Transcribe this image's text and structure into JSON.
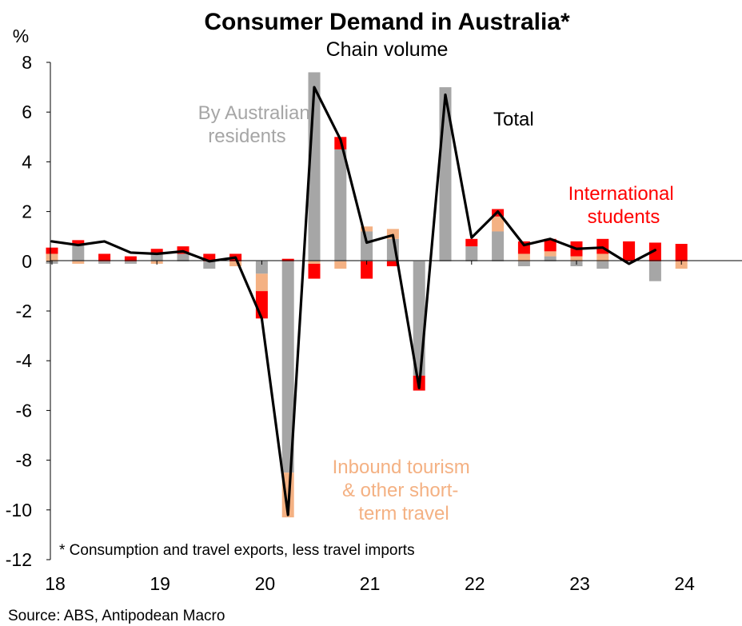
{
  "colors": {
    "residents": "#a6a6a6",
    "tourism": "#f4b183",
    "students": "#ff0000",
    "total": "#000000",
    "axis": "#000000",
    "text": "#000000"
  },
  "chart_data": {
    "type": "bar",
    "stacked": true,
    "title": "Consumer Demand in Australia*",
    "subtitle": "Chain volume",
    "ylabel": "%",
    "ylim": [
      -12,
      8
    ],
    "yticks": [
      8,
      6,
      4,
      2,
      0,
      -2,
      -4,
      -6,
      -8,
      -10,
      -12
    ],
    "x_year_labels": [
      "18",
      "19",
      "20",
      "21",
      "22",
      "23",
      "24"
    ],
    "categories": [
      "2018Q1",
      "2018Q2",
      "2018Q3",
      "2018Q4",
      "2019Q1",
      "2019Q2",
      "2019Q3",
      "2019Q4",
      "2020Q1",
      "2020Q2",
      "2020Q3",
      "2020Q4",
      "2021Q1",
      "2021Q2",
      "2021Q3",
      "2021Q4",
      "2022Q1",
      "2022Q2",
      "2022Q3",
      "2022Q4",
      "2023Q1",
      "2023Q2",
      "2023Q3",
      "2023Q4",
      "2024Q1"
    ],
    "series": [
      {
        "name": "By Australian residents",
        "kind": "bar",
        "values": [
          -0.1,
          0.7,
          -0.1,
          -0.1,
          0.3,
          0.3,
          -0.3,
          0.0,
          -0.5,
          -8.5,
          7.6,
          4.5,
          1.2,
          0.9,
          -4.6,
          7.0,
          0.6,
          1.2,
          -0.2,
          0.2,
          -0.2,
          -0.3,
          0.0,
          -0.8,
          0.0
        ]
      },
      {
        "name": "Inbound tourism & other short-term travel",
        "kind": "bar",
        "values": [
          0.3,
          -0.1,
          0.0,
          0.0,
          -0.1,
          0.0,
          0.0,
          -0.2,
          -0.7,
          -1.8,
          -0.1,
          -0.3,
          0.2,
          0.4,
          0.0,
          0.0,
          0.0,
          0.6,
          0.3,
          0.2,
          0.2,
          0.3,
          0.0,
          0.0,
          -0.3
        ]
      },
      {
        "name": "International students",
        "kind": "bar",
        "values": [
          0.25,
          0.15,
          0.3,
          0.2,
          0.2,
          0.3,
          0.3,
          0.3,
          -1.1,
          0.1,
          -0.6,
          0.5,
          -0.7,
          -0.2,
          -0.6,
          0.0,
          0.3,
          0.3,
          0.5,
          0.5,
          0.6,
          0.6,
          0.8,
          0.75,
          0.7
        ]
      },
      {
        "name": "Total",
        "kind": "line",
        "values": [
          0.8,
          0.65,
          0.8,
          0.35,
          0.3,
          0.4,
          0.0,
          0.15,
          -2.3,
          -10.2,
          7.0,
          4.9,
          0.75,
          1.05,
          -5.1,
          6.7,
          0.95,
          2.0,
          0.65,
          0.9,
          0.5,
          0.55,
          -0.1,
          0.45,
          null
        ]
      }
    ],
    "annotations": {
      "residents": "By Australian residents",
      "tourism": "Inbound tourism & other short-term travel",
      "students": "International students",
      "total": "Total"
    },
    "footnote": "* Consumption and travel exports, less travel imports",
    "source": "Source: ABS, Antipodean Macro"
  }
}
